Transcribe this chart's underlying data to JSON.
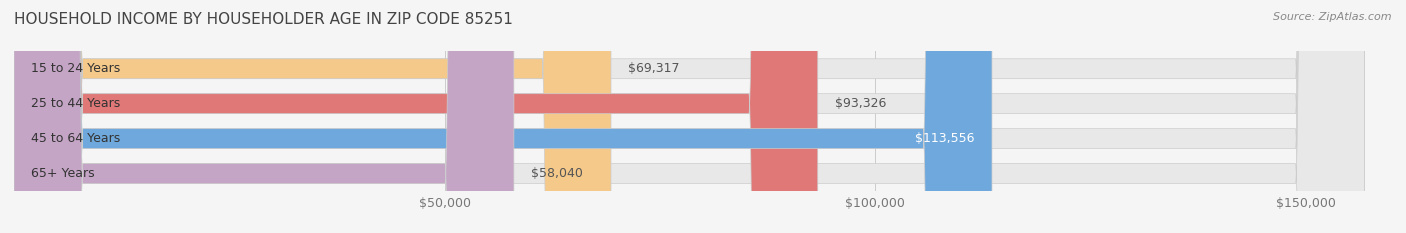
{
  "title": "HOUSEHOLD INCOME BY HOUSEHOLDER AGE IN ZIP CODE 85251",
  "source": "Source: ZipAtlas.com",
  "categories": [
    "15 to 24 Years",
    "25 to 44 Years",
    "45 to 64 Years",
    "65+ Years"
  ],
  "values": [
    69317,
    93326,
    113556,
    58040
  ],
  "bar_colors": [
    "#f5c98a",
    "#e07878",
    "#6fa8dc",
    "#c5a5c5"
  ],
  "bar_labels": [
    "$69,317",
    "$93,326",
    "$113,556",
    "$58,040"
  ],
  "label_colors": [
    "#555555",
    "#555555",
    "#ffffff",
    "#555555"
  ],
  "xlim": [
    0,
    160000
  ],
  "xticks": [
    50000,
    100000,
    150000
  ],
  "xticklabels": [
    "$50,000",
    "$100,000",
    "$150,000"
  ],
  "background_color": "#f5f5f5",
  "bar_background_color": "#e8e8e8",
  "title_fontsize": 11,
  "source_fontsize": 8,
  "label_fontsize": 9,
  "tick_fontsize": 9,
  "bar_height": 0.55,
  "bar_edge_color": "#cccccc"
}
